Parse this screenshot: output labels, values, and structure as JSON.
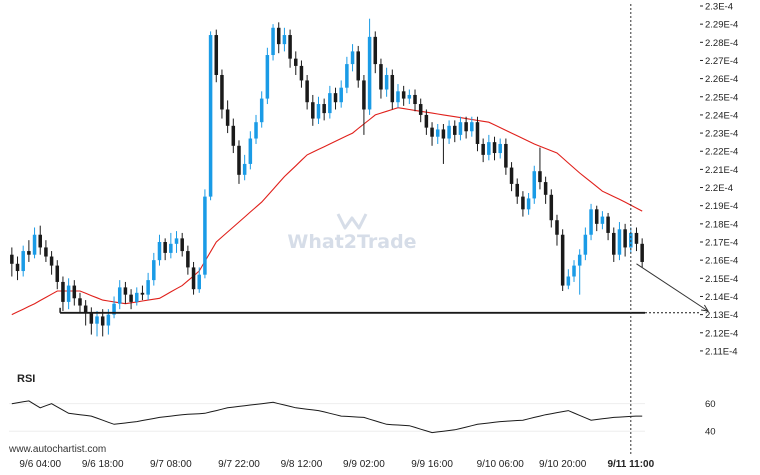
{
  "watermark": {
    "text": "What2Trade"
  },
  "footer": {
    "site": "www.autochartist.com"
  },
  "colors": {
    "bull": "#1a9be6",
    "bear": "#1a1a1a",
    "ma": "#e0201b",
    "support": "#1a1a1a",
    "rsi": "#1a1a1a",
    "projection": "#333333"
  },
  "chart_data": {
    "type": "candlestick",
    "time_labels": [
      "9/6 04:00",
      "9/6 18:00",
      "9/7 08:00",
      "9/7 22:00",
      "9/8 12:00",
      "9/9 02:00",
      "9/9 16:00",
      "9/10 06:00",
      "9/10 20:00",
      "9/11 11:00"
    ],
    "time_label_candle_index": [
      5,
      16,
      28,
      40,
      51,
      62,
      74,
      86,
      97,
      109
    ],
    "y_ticks": [
      "2.3E-4",
      "2.29E-4",
      "2.28E-4",
      "2.27E-4",
      "2.26E-4",
      "2.25E-4",
      "2.24E-4",
      "2.23E-4",
      "2.22E-4",
      "2.21E-4",
      "2.2E-4",
      "2.19E-4",
      "2.18E-4",
      "2.17E-4",
      "2.16E-4",
      "2.15E-4",
      "2.14E-4",
      "2.13E-4",
      "2.12E-4",
      "2.11E-4"
    ],
    "ylim": [
      0.0002105,
      0.00023
    ],
    "support_level": 0.0002131,
    "support_start_index": 9,
    "projection": {
      "from_index": 110,
      "from_value": 0.0002158,
      "to_value": 0.0002132
    },
    "current_time_label": "9/11 11:00",
    "candles": [
      [
        0.0002163,
        0.0002158,
        0.0002167,
        0.0002151
      ],
      [
        0.0002158,
        0.0002154,
        0.0002162,
        0.0002149
      ],
      [
        0.0002154,
        0.0002165,
        0.0002168,
        0.0002151
      ],
      [
        0.0002165,
        0.0002163,
        0.0002171,
        0.0002159
      ],
      [
        0.0002163,
        0.0002174,
        0.0002178,
        0.0002161
      ],
      [
        0.0002174,
        0.0002167,
        0.0002179,
        0.0002163
      ],
      [
        0.0002167,
        0.0002162,
        0.0002171,
        0.0002159
      ],
      [
        0.0002162,
        0.0002157,
        0.0002165,
        0.0002152
      ],
      [
        0.0002157,
        0.0002148,
        0.000216,
        0.0002144
      ],
      [
        0.0002148,
        0.0002137,
        0.0002151,
        0.0002132
      ],
      [
        0.0002137,
        0.0002146,
        0.000215,
        0.0002133
      ],
      [
        0.0002146,
        0.0002139,
        0.0002149,
        0.0002135
      ],
      [
        0.0002139,
        0.0002135,
        0.0002142,
        0.0002131
      ],
      [
        0.0002135,
        0.0002131,
        0.0002138,
        0.0002124
      ],
      [
        0.0002131,
        0.0002125,
        0.0002134,
        0.0002119
      ],
      [
        0.0002125,
        0.0002129,
        0.0002132,
        0.0002118
      ],
      [
        0.0002129,
        0.0002124,
        0.0002133,
        0.0002118
      ],
      [
        0.0002124,
        0.000213,
        0.0002133,
        0.0002119
      ],
      [
        0.000213,
        0.0002136,
        0.000214,
        0.0002128
      ],
      [
        0.0002136,
        0.0002145,
        0.0002149,
        0.0002133
      ],
      [
        0.0002145,
        0.0002141,
        0.0002148,
        0.0002136
      ],
      [
        0.0002141,
        0.0002137,
        0.0002144,
        0.0002133
      ],
      [
        0.0002137,
        0.0002142,
        0.0002145,
        0.0002135
      ],
      [
        0.0002142,
        0.0002141,
        0.0002146,
        0.0002138
      ],
      [
        0.0002141,
        0.0002149,
        0.0002153,
        0.0002138
      ],
      [
        0.0002149,
        0.000216,
        0.0002164,
        0.0002146
      ],
      [
        0.000216,
        0.000217,
        0.0002174,
        0.0002157
      ],
      [
        0.000217,
        0.0002164,
        0.0002172,
        0.000216
      ],
      [
        0.0002164,
        0.0002169,
        0.0002175,
        0.0002161
      ],
      [
        0.0002169,
        0.0002172,
        0.0002176,
        0.0002164
      ],
      [
        0.0002172,
        0.0002165,
        0.0002175,
        0.0002162
      ],
      [
        0.0002165,
        0.0002156,
        0.0002168,
        0.0002152
      ],
      [
        0.0002156,
        0.0002144,
        0.0002159,
        0.0002141
      ],
      [
        0.0002144,
        0.0002152,
        0.0002156,
        0.0002142
      ],
      [
        0.0002152,
        0.0002195,
        0.0002199,
        0.000215
      ],
      [
        0.0002195,
        0.0002284,
        0.0002286,
        0.0002193
      ],
      [
        0.0002284,
        0.0002262,
        0.0002287,
        0.0002258
      ],
      [
        0.0002262,
        0.0002243,
        0.0002265,
        0.0002238
      ],
      [
        0.0002243,
        0.0002234,
        0.0002248,
        0.000223
      ],
      [
        0.0002234,
        0.0002223,
        0.0002238,
        0.0002219
      ],
      [
        0.0002223,
        0.0002207,
        0.0002226,
        0.0002202
      ],
      [
        0.0002207,
        0.0002213,
        0.0002218,
        0.0002204
      ],
      [
        0.0002213,
        0.0002227,
        0.0002231,
        0.000221
      ],
      [
        0.0002227,
        0.0002236,
        0.000224,
        0.0002224
      ],
      [
        0.0002236,
        0.0002249,
        0.0002253,
        0.0002233
      ],
      [
        0.0002249,
        0.0002273,
        0.0002277,
        0.0002246
      ],
      [
        0.0002273,
        0.0002288,
        0.000229,
        0.000227
      ],
      [
        0.0002288,
        0.0002279,
        0.0002291,
        0.0002274
      ],
      [
        0.0002279,
        0.0002284,
        0.0002288,
        0.0002275
      ],
      [
        0.0002284,
        0.0002271,
        0.0002287,
        0.0002266
      ],
      [
        0.0002271,
        0.0002267,
        0.0002275,
        0.0002262
      ],
      [
        0.0002267,
        0.0002259,
        0.000227,
        0.0002255
      ],
      [
        0.0002259,
        0.0002247,
        0.0002262,
        0.0002243
      ],
      [
        0.0002247,
        0.0002238,
        0.0002251,
        0.0002234
      ],
      [
        0.0002238,
        0.0002246,
        0.000225,
        0.0002235
      ],
      [
        0.0002246,
        0.0002241,
        0.0002249,
        0.0002237
      ],
      [
        0.0002241,
        0.0002252,
        0.0002256,
        0.0002238
      ],
      [
        0.0002252,
        0.0002247,
        0.0002255,
        0.0002243
      ],
      [
        0.0002247,
        0.0002255,
        0.0002259,
        0.0002244
      ],
      [
        0.0002255,
        0.0002268,
        0.0002272,
        0.0002252
      ],
      [
        0.0002268,
        0.0002275,
        0.0002279,
        0.0002264
      ],
      [
        0.0002275,
        0.0002259,
        0.0002278,
        0.0002255
      ],
      [
        0.0002259,
        0.0002243,
        0.0002262,
        0.0002229
      ],
      [
        0.0002243,
        0.0002283,
        0.0002293,
        0.000224
      ],
      [
        0.0002283,
        0.0002268,
        0.0002286,
        0.0002263
      ],
      [
        0.0002268,
        0.0002254,
        0.0002271,
        0.0002249
      ],
      [
        0.0002254,
        0.0002262,
        0.0002266,
        0.000225
      ],
      [
        0.0002262,
        0.0002247,
        0.0002265,
        0.0002243
      ],
      [
        0.0002247,
        0.0002253,
        0.0002257,
        0.0002244
      ],
      [
        0.0002253,
        0.0002249,
        0.0002256,
        0.0002245
      ],
      [
        0.0002249,
        0.0002251,
        0.0002254,
        0.0002246
      ],
      [
        0.0002251,
        0.0002246,
        0.0002254,
        0.0002242
      ],
      [
        0.0002246,
        0.000224,
        0.0002249,
        0.0002236
      ],
      [
        0.000224,
        0.0002233,
        0.0002243,
        0.0002229
      ],
      [
        0.0002233,
        0.0002228,
        0.0002236,
        0.0002223
      ],
      [
        0.0002228,
        0.0002232,
        0.0002235,
        0.0002224
      ],
      [
        0.0002232,
        0.0002227,
        0.0002235,
        0.0002213
      ],
      [
        0.0002227,
        0.0002234,
        0.0002237,
        0.0002224
      ],
      [
        0.0002234,
        0.0002229,
        0.0002237,
        0.0002225
      ],
      [
        0.0002229,
        0.0002236,
        0.0002239,
        0.0002226
      ],
      [
        0.0002236,
        0.0002231,
        0.0002239,
        0.0002227
      ],
      [
        0.0002231,
        0.0002236,
        0.0002239,
        0.0002228
      ],
      [
        0.0002236,
        0.0002224,
        0.0002239,
        0.000222
      ],
      [
        0.0002224,
        0.0002218,
        0.0002227,
        0.0002214
      ],
      [
        0.0002218,
        0.0002225,
        0.0002229,
        0.0002215
      ],
      [
        0.0002225,
        0.0002219,
        0.0002228,
        0.0002215
      ],
      [
        0.0002219,
        0.0002224,
        0.0002227,
        0.0002216
      ],
      [
        0.0002224,
        0.0002211,
        0.0002227,
        0.0002207
      ],
      [
        0.0002211,
        0.0002202,
        0.0002214,
        0.0002198
      ],
      [
        0.0002202,
        0.0002195,
        0.0002205,
        0.0002191
      ],
      [
        0.0002195,
        0.0002188,
        0.0002198,
        0.0002184
      ],
      [
        0.0002188,
        0.0002194,
        0.0002197,
        0.0002185
      ],
      [
        0.0002194,
        0.0002209,
        0.0002212,
        0.0002191
      ],
      [
        0.0002209,
        0.0002203,
        0.0002222,
        0.0002199
      ],
      [
        0.0002203,
        0.0002196,
        0.0002206,
        0.0002191
      ],
      [
        0.0002196,
        0.0002182,
        0.0002199,
        0.0002178
      ],
      [
        0.0002182,
        0.0002174,
        0.0002185,
        0.0002168
      ],
      [
        0.0002174,
        0.0002146,
        0.0002177,
        0.0002143
      ],
      [
        0.0002146,
        0.0002151,
        0.0002155,
        0.0002144
      ],
      [
        0.0002151,
        0.0002157,
        0.000216,
        0.0002148
      ],
      [
        0.0002157,
        0.0002163,
        0.0002166,
        0.0002141
      ],
      [
        0.0002163,
        0.0002174,
        0.0002178,
        0.000216
      ],
      [
        0.0002174,
        0.0002188,
        0.0002191,
        0.0002171
      ],
      [
        0.0002188,
        0.000218,
        0.000219,
        0.0002176
      ],
      [
        0.000218,
        0.0002184,
        0.0002187,
        0.0002177
      ],
      [
        0.0002184,
        0.0002175,
        0.0002186,
        0.0002171
      ],
      [
        0.0002175,
        0.0002163,
        0.0002178,
        0.0002159
      ],
      [
        0.0002163,
        0.0002177,
        0.0002181,
        0.000216
      ],
      [
        0.0002177,
        0.0002167,
        0.000218,
        0.0002162
      ],
      [
        0.0002167,
        0.0002175,
        0.0002178,
        0.0002164
      ],
      [
        0.0002175,
        0.0002169,
        0.0002178,
        0.0002165
      ],
      [
        0.0002169,
        0.0002159,
        0.0002172,
        0.0002156
      ]
    ],
    "ma": {
      "anchors_index": [
        0,
        4,
        8,
        12,
        16,
        20,
        26,
        30,
        33,
        36,
        40,
        44,
        48,
        52,
        56,
        60,
        64,
        68,
        72,
        76,
        80,
        84,
        88,
        92,
        96,
        100,
        104,
        108,
        111
      ],
      "anchors_value": [
        0.000213,
        0.0002136,
        0.0002143,
        0.0002143,
        0.0002138,
        0.0002136,
        0.0002139,
        0.0002146,
        0.0002154,
        0.000217,
        0.0002181,
        0.0002192,
        0.0002206,
        0.0002218,
        0.0002224,
        0.000223,
        0.000224,
        0.0002244,
        0.0002242,
        0.000224,
        0.0002238,
        0.0002236,
        0.000223,
        0.0002224,
        0.0002219,
        0.0002208,
        0.0002198,
        0.0002192,
        0.0002187
      ]
    },
    "rsi": {
      "title": "RSI",
      "levels": [
        "60",
        "40"
      ],
      "ylim": [
        30,
        75
      ],
      "anchors_index": [
        0,
        3,
        5,
        7,
        10,
        14,
        18,
        22,
        26,
        30,
        34,
        38,
        42,
        46,
        50,
        54,
        58,
        62,
        66,
        70,
        74,
        78,
        82,
        86,
        90,
        94,
        98,
        102,
        106,
        110
      ],
      "anchors_value": [
        60,
        62,
        57,
        60,
        53,
        51,
        45,
        47,
        50,
        52,
        53,
        57,
        59,
        61,
        57,
        55,
        51,
        50,
        45,
        44,
        39,
        41,
        45,
        47,
        48,
        52,
        55,
        48,
        50,
        51
      ]
    }
  }
}
